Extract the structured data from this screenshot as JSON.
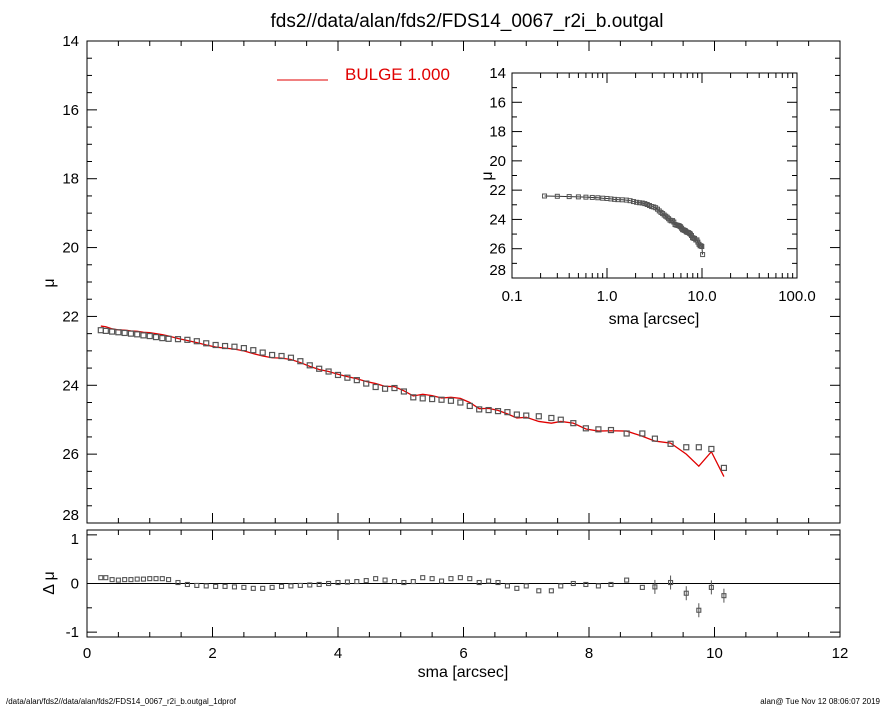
{
  "chart_data": {
    "type": "scatter",
    "title": "fds2//data/alan/fds2/FDS14_0067_r2i_b.outgal",
    "footer_left": "/data/alan/fds2//data/alan/fds2/FDS14_0067_r2i_b.outgal_1dprof",
    "footer_right": "alan@  Tue Nov 12 08:06:07 2019",
    "colors": {
      "data": "#555555",
      "model": "#e00000"
    },
    "legend": {
      "label": "BULGE  1.000",
      "placement": "top-left"
    },
    "main": {
      "xlabel": "sma [arcsec]",
      "ylabel": "μ",
      "xlim": [
        0,
        12
      ],
      "ylim": [
        28,
        14
      ],
      "xticks": [
        "0",
        "2",
        "4",
        "6",
        "8",
        "10",
        "12"
      ],
      "yticks": [
        "14",
        "16",
        "18",
        "20",
        "22",
        "24",
        "26",
        "28"
      ]
    },
    "residual": {
      "ylabel": "Δ μ",
      "ylim": [
        -1.1,
        1.1
      ],
      "yticks": [
        "1",
        "0",
        "-1"
      ]
    },
    "inset": {
      "xlabel": "sma [arcsec]",
      "ylabel": "μ",
      "xscale": "log",
      "xlim": [
        0.1,
        100
      ],
      "ylim": [
        28,
        14
      ],
      "xticks": [
        "0.1",
        "1.0",
        "10.0",
        "100.0"
      ],
      "yticks": [
        "14",
        "16",
        "18",
        "20",
        "22",
        "24",
        "26",
        "28"
      ]
    },
    "sma": [
      0.22,
      0.3,
      0.4,
      0.5,
      0.6,
      0.7,
      0.8,
      0.9,
      1.0,
      1.1,
      1.2,
      1.3,
      1.45,
      1.6,
      1.75,
      1.9,
      2.05,
      2.2,
      2.35,
      2.5,
      2.65,
      2.8,
      2.95,
      3.1,
      3.25,
      3.4,
      3.55,
      3.7,
      3.85,
      4.0,
      4.15,
      4.3,
      4.45,
      4.6,
      4.75,
      4.9,
      5.05,
      5.2,
      5.35,
      5.5,
      5.65,
      5.8,
      5.95,
      6.1,
      6.25,
      6.4,
      6.55,
      6.7,
      6.85,
      7.0,
      7.2,
      7.4,
      7.55,
      7.75,
      7.95,
      8.15,
      8.35,
      8.6,
      8.85,
      9.05,
      9.3,
      9.55,
      9.75,
      9.95,
      10.15
    ],
    "mu": [
      22.4,
      22.42,
      22.44,
      22.46,
      22.48,
      22.5,
      22.52,
      22.55,
      22.57,
      22.6,
      22.63,
      22.65,
      22.66,
      22.68,
      22.72,
      22.78,
      22.83,
      22.86,
      22.88,
      22.92,
      22.98,
      23.05,
      23.12,
      23.15,
      23.2,
      23.3,
      23.42,
      23.52,
      23.6,
      23.7,
      23.78,
      23.85,
      23.95,
      24.05,
      24.1,
      24.08,
      24.18,
      24.35,
      24.38,
      24.4,
      24.42,
      24.45,
      24.5,
      24.6,
      24.7,
      24.72,
      24.75,
      24.78,
      24.85,
      24.88,
      24.9,
      24.95,
      25.0,
      25.1,
      25.25,
      25.28,
      25.3,
      25.4,
      25.4,
      25.55,
      25.7,
      25.8,
      25.8,
      25.85,
      26.4
    ],
    "residual_values": [
      0.12,
      0.12,
      0.08,
      0.07,
      0.08,
      0.08,
      0.09,
      0.09,
      0.1,
      0.1,
      0.1,
      0.08,
      0.02,
      -0.02,
      -0.04,
      -0.05,
      -0.06,
      -0.06,
      -0.07,
      -0.08,
      -0.1,
      -0.1,
      -0.08,
      -0.06,
      -0.05,
      -0.04,
      -0.03,
      -0.02,
      0,
      0.02,
      0.03,
      0.04,
      0.06,
      0.1,
      0.07,
      0.04,
      0.02,
      0.04,
      0.12,
      0.1,
      0.05,
      0.1,
      0.12,
      0.1,
      0.02,
      0.05,
      0.02,
      -0.05,
      -0.1,
      -0.05,
      -0.15,
      -0.15,
      -0.05,
      0,
      -0.02,
      -0.05,
      -0.02,
      0.07,
      -0.08,
      -0.07,
      0.02,
      -0.2,
      -0.55,
      -0.08,
      -0.25
    ]
  }
}
